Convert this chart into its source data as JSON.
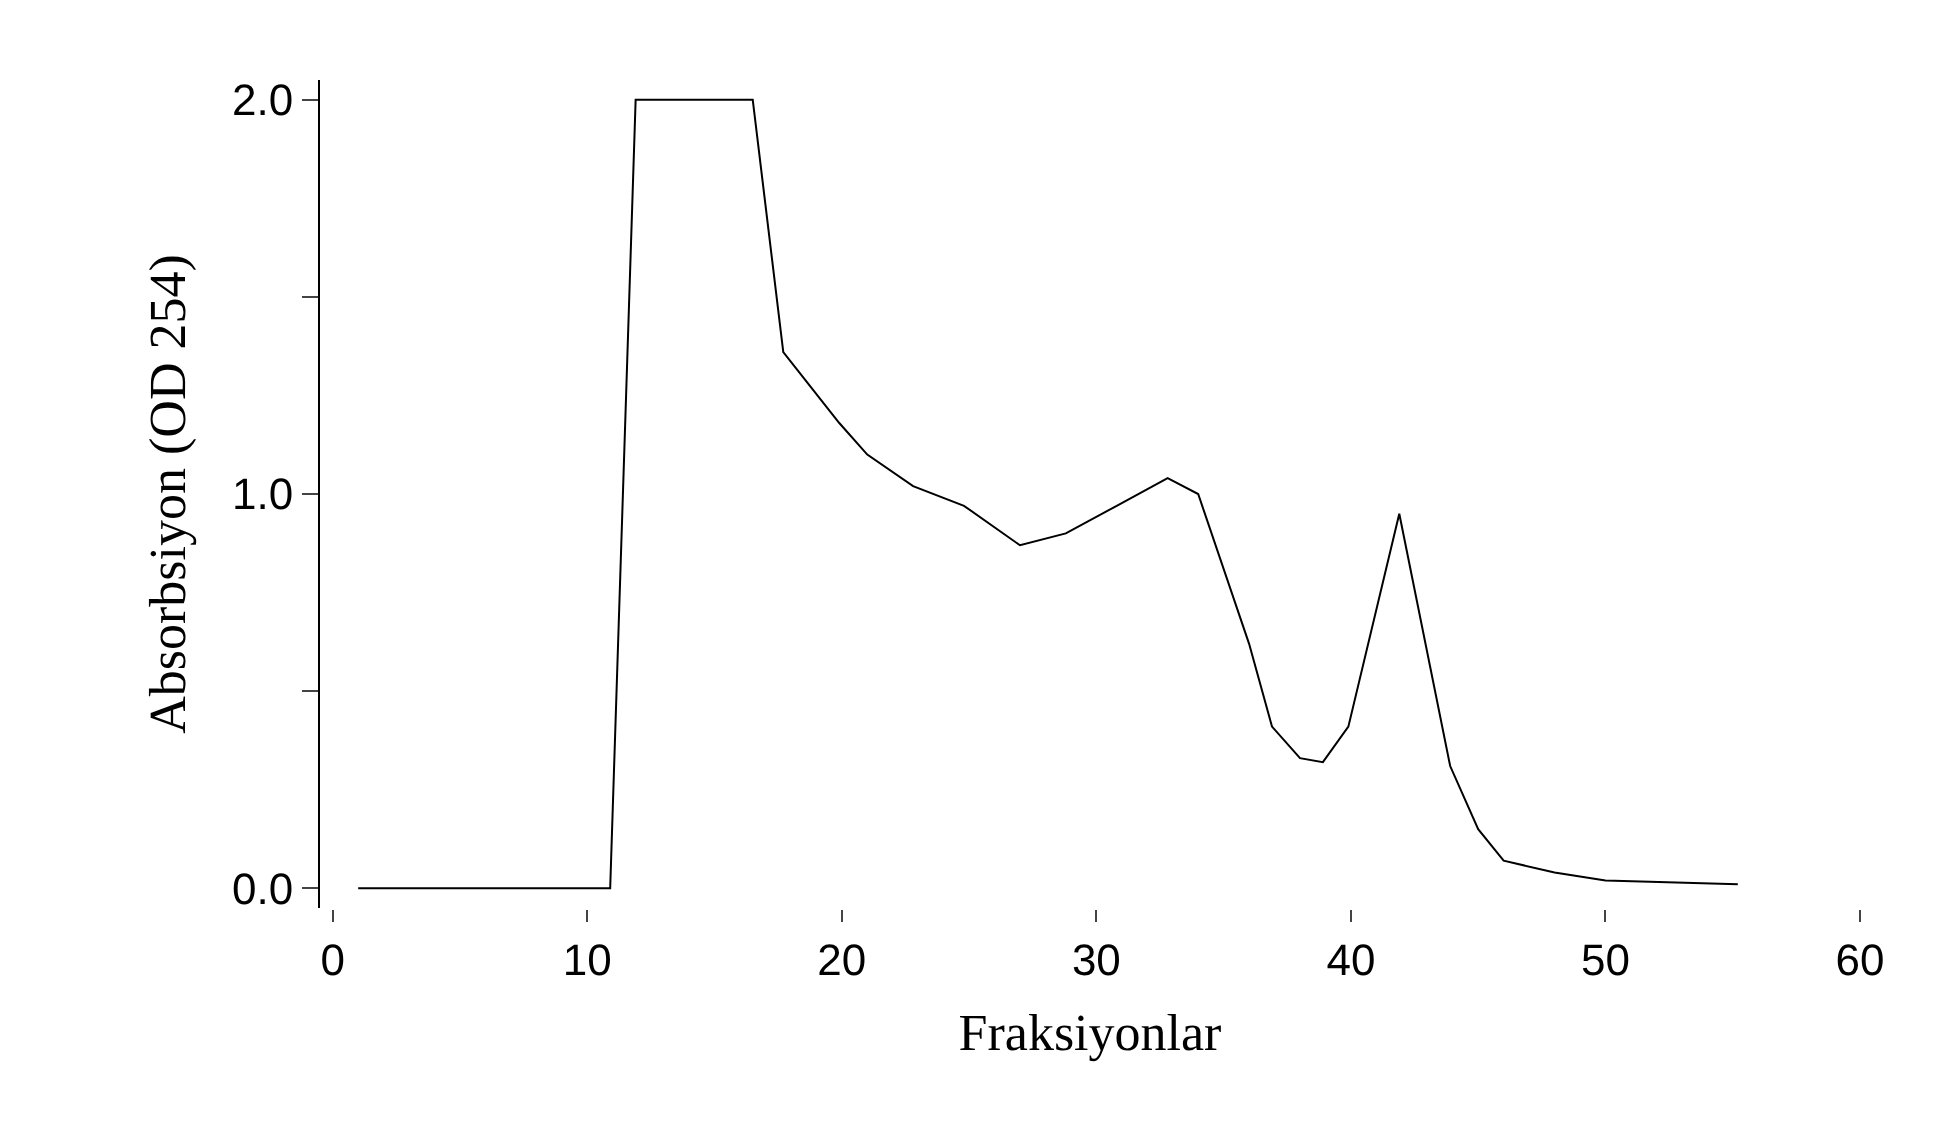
{
  "chart_data": {
    "type": "line",
    "xlabel": "Fraksiyonlar",
    "ylabel": "Absorbsiyon (OD 254)",
    "xlim": [
      -0.5,
      60
    ],
    "xticks": [
      0,
      10,
      20,
      30,
      40,
      50,
      60
    ],
    "ylim": [
      -0.05,
      2.05
    ],
    "yticks": [
      {
        "value": 0,
        "label": "0.0"
      },
      {
        "value": 0.5,
        "label": null
      },
      {
        "value": 1,
        "label": "1.0"
      },
      {
        "value": 1.5,
        "label": null
      },
      {
        "value": 2,
        "label": "2.0"
      }
    ],
    "marker": "none",
    "line_style": "solid",
    "series": [
      {
        "color": "#000000",
        "x": [
          1,
          5,
          10,
          10.9,
          11.9,
          16.5,
          17.7,
          19.9,
          21,
          22.8,
          24.8,
          27,
          28.8,
          30.8,
          32.8,
          34,
          36,
          36.9,
          38,
          38.9,
          39.9,
          41.9,
          43.9,
          45,
          46,
          48,
          50,
          55.2
        ],
        "values": [
          0.0,
          0.0,
          0.0,
          0.0,
          2.0,
          2.0,
          1.36,
          1.18,
          1.1,
          1.02,
          0.97,
          0.87,
          0.9,
          0.97,
          1.04,
          1.0,
          0.62,
          0.41,
          0.33,
          0.32,
          0.41,
          0.95,
          0.31,
          0.15,
          0.07,
          0.04,
          0.02,
          0.01
        ]
      }
    ]
  }
}
